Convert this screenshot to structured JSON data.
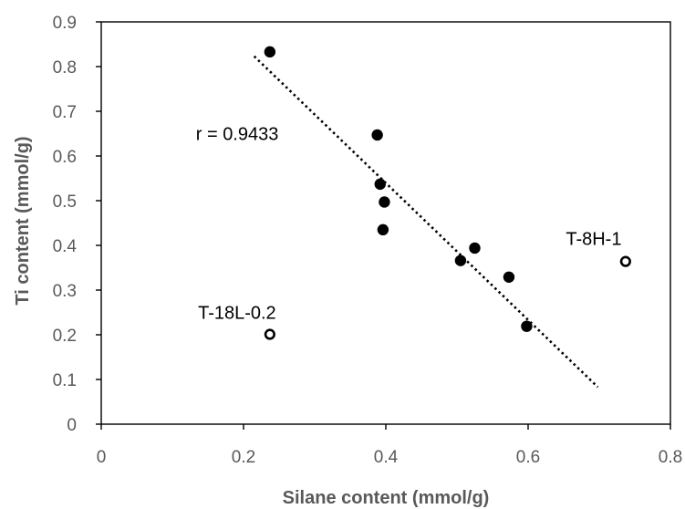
{
  "chart_data": {
    "type": "scatter",
    "xlabel": "Silane content (mmol/g)",
    "ylabel": "Ti content (mmol/g)",
    "xlim": [
      0,
      0.8
    ],
    "ylim": [
      0,
      0.9
    ],
    "x_ticks": [
      "0",
      "0.2",
      "0.4",
      "0.6",
      "0.8"
    ],
    "y_ticks": [
      "0",
      "0.1",
      "0.2",
      "0.3",
      "0.4",
      "0.5",
      "0.6",
      "0.7",
      "0.8",
      "0.9"
    ],
    "grid": "none",
    "series": [
      {
        "marker": "filled-circle",
        "color": "#000000",
        "points": [
          {
            "x": 0.237,
            "y": 0.833
          },
          {
            "x": 0.388,
            "y": 0.647
          },
          {
            "x": 0.392,
            "y": 0.537
          },
          {
            "x": 0.398,
            "y": 0.497
          },
          {
            "x": 0.396,
            "y": 0.435
          },
          {
            "x": 0.505,
            "y": 0.366
          },
          {
            "x": 0.525,
            "y": 0.394
          },
          {
            "x": 0.573,
            "y": 0.329
          },
          {
            "x": 0.598,
            "y": 0.219
          }
        ]
      },
      {
        "marker": "open-circle",
        "color": "#000000",
        "points": [
          {
            "x": 0.237,
            "y": 0.201,
            "label": "T-18L-0.2"
          },
          {
            "x": 0.737,
            "y": 0.364,
            "label": "T-8H-1"
          }
        ]
      }
    ],
    "trendline": {
      "style": "dotted",
      "color": "#000000",
      "from": {
        "x": 0.215,
        "y": 0.823
      },
      "to": {
        "x": 0.698,
        "y": 0.083
      }
    },
    "annotations": [
      {
        "text": "r = 0.9433",
        "x": 0.133,
        "y": 0.65
      },
      {
        "text": "T-18L-0.2",
        "x": 0.136,
        "y": 0.25
      },
      {
        "text": "T-8H-1",
        "x": 0.653,
        "y": 0.415
      }
    ]
  }
}
